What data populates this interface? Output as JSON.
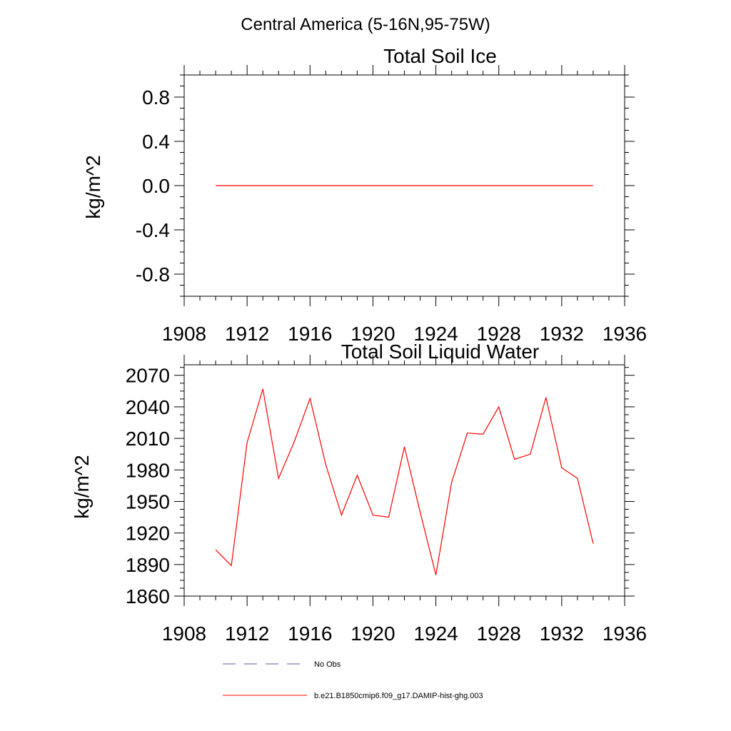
{
  "figure": {
    "title": "Central America (5-16N,95-75W)"
  },
  "legend": {
    "entries": [
      {
        "label": "No Obs",
        "style": "dashed",
        "color": "#5a5aa0"
      },
      {
        "label": "b.e21.B1850cmip6.f09_g17.DAMIP-hist-ghg.003",
        "style": "solid",
        "color": "#ff0000"
      }
    ]
  },
  "chart_data": [
    {
      "type": "line",
      "title": "Total Soil Ice",
      "xlabel": "",
      "ylabel": "kg/m^2",
      "xlim": [
        1908,
        1936
      ],
      "ylim": [
        -1.0,
        1.0
      ],
      "xticks": [
        1908,
        1912,
        1916,
        1920,
        1924,
        1928,
        1932,
        1936
      ],
      "xtick_labels": [
        "1908",
        "1912",
        "1916",
        "1920",
        "1924",
        "1928",
        "1932",
        "1936"
      ],
      "yticks": [
        0.8,
        0.4,
        0.0,
        -0.4,
        -0.8
      ],
      "ytick_labels": [
        "0.8",
        "0.4",
        "0.0",
        "-0.4",
        "-0.8"
      ],
      "grid": false,
      "series": [
        {
          "name": "b.e21.B1850cmip6.f09_g17.DAMIP-hist-ghg.003",
          "color": "#ff0000",
          "x": [
            1910,
            1911,
            1912,
            1913,
            1914,
            1915,
            1916,
            1917,
            1918,
            1919,
            1920,
            1921,
            1922,
            1923,
            1924,
            1925,
            1926,
            1927,
            1928,
            1929,
            1930,
            1931,
            1932,
            1933,
            1934
          ],
          "y": [
            0,
            0,
            0,
            0,
            0,
            0,
            0,
            0,
            0,
            0,
            0,
            0,
            0,
            0,
            0,
            0,
            0,
            0,
            0,
            0,
            0,
            0,
            0,
            0,
            0
          ]
        }
      ]
    },
    {
      "type": "line",
      "title": "Total Soil Liquid Water",
      "xlabel": "",
      "ylabel": "kg/m^2",
      "xlim": [
        1908,
        1936
      ],
      "ylim": [
        1860,
        2080
      ],
      "xticks": [
        1908,
        1912,
        1916,
        1920,
        1924,
        1928,
        1932,
        1936
      ],
      "xtick_labels": [
        "1908",
        "1912",
        "1916",
        "1920",
        "1924",
        "1928",
        "1932",
        "1936"
      ],
      "yticks": [
        2070,
        2040,
        2010,
        1980,
        1950,
        1920,
        1890,
        1860
      ],
      "ytick_labels": [
        "2070",
        "2040",
        "2010",
        "1980",
        "1950",
        "1920",
        "1890",
        "1860"
      ],
      "grid": false,
      "series": [
        {
          "name": "b.e21.B1850cmip6.f09_g17.DAMIP-hist-ghg.003",
          "color": "#ff0000",
          "x": [
            1910,
            1911,
            1912,
            1913,
            1914,
            1915,
            1916,
            1917,
            1918,
            1919,
            1920,
            1921,
            1922,
            1923,
            1924,
            1925,
            1926,
            1927,
            1928,
            1929,
            1930,
            1931,
            1932,
            1933,
            1934
          ],
          "y": [
            1904,
            1889,
            2006,
            2057,
            1972,
            2007,
            2048,
            1985,
            1937,
            1975,
            1937,
            1935,
            2002,
            1940,
            1880,
            1968,
            2015,
            2014,
            2040,
            1990,
            1995,
            2049,
            1982,
            1972,
            1910
          ]
        }
      ]
    }
  ]
}
